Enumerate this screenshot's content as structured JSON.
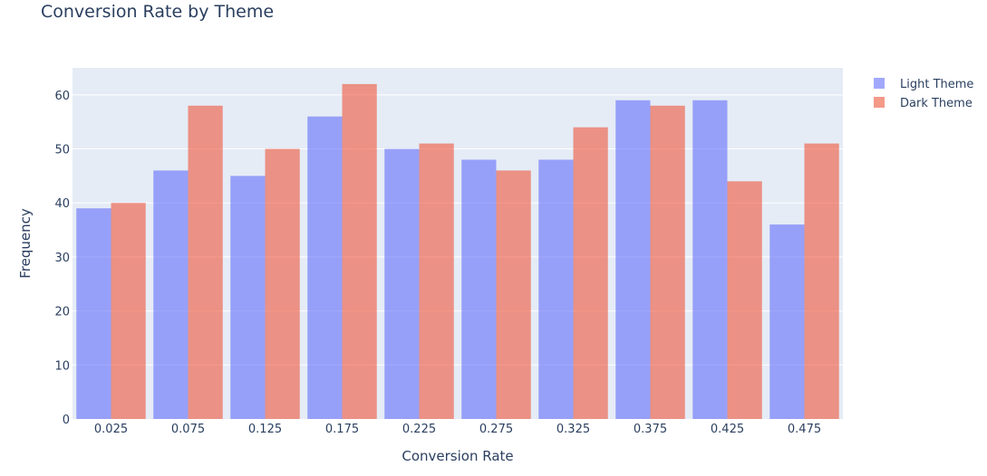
{
  "chart_data": {
    "type": "bar",
    "title": "Conversion Rate by Theme",
    "xlabel": "Conversion Rate",
    "ylabel": "Frequency",
    "categories": [
      "0.025",
      "0.075",
      "0.125",
      "0.175",
      "0.225",
      "0.275",
      "0.325",
      "0.375",
      "0.425",
      "0.475"
    ],
    "y_ticks": [
      "0",
      "10",
      "20",
      "30",
      "40",
      "50",
      "60"
    ],
    "ylim": [
      0,
      65
    ],
    "grid": true,
    "legend_position": "top-right",
    "series": [
      {
        "name": "Light Theme",
        "color": "#636efa",
        "values": [
          39,
          46,
          45,
          56,
          50,
          48,
          48,
          59,
          59,
          36
        ]
      },
      {
        "name": "Dark Theme",
        "color": "#ef553b",
        "values": [
          40,
          58,
          50,
          62,
          51,
          46,
          54,
          58,
          44,
          51
        ]
      }
    ],
    "plot_background": "#e5ecf6",
    "bar_opacity": 0.6
  }
}
